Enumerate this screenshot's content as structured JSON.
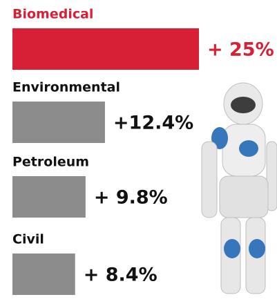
{
  "chart_data": {
    "type": "bar",
    "orientation": "horizontal",
    "categories": [
      "Biomedical",
      "Environmental",
      "Petroleum",
      "Civil"
    ],
    "values": [
      25,
      12.4,
      9.8,
      8.4
    ],
    "value_labels": [
      "+ 25%",
      "+12.4%",
      "+ 9.8%",
      "+ 8.4%"
    ],
    "colors": [
      "#d71f35",
      "#8c8c8c",
      "#8c8c8c",
      "#8c8c8c"
    ],
    "label_colors": [
      "#d71f35",
      "#111111",
      "#111111",
      "#111111"
    ]
  }
}
